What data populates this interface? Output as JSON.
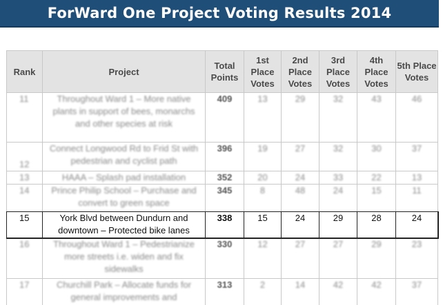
{
  "banner": {
    "title": "ForWard One Project Voting Results 2014"
  },
  "table": {
    "headers": {
      "rank": "Rank",
      "project": "Project",
      "total": "Total Points",
      "first": "1st Place Votes",
      "second": "2nd Place Votes",
      "third": "3rd Place Votes",
      "fourth": "4th Place Votes",
      "fifth": "5th Place Votes"
    },
    "rows": [
      {
        "rank": "11",
        "project": "Throughout Ward 1 – More native plants in support of bees, monarchs and other species at risk",
        "total": "409",
        "v1": "13",
        "v2": "29",
        "v3": "32",
        "v4": "43",
        "v5": "46"
      },
      {
        "rank": "12",
        "project": "Connect Longwood Rd to Frid St with pedestrian and cyclist path",
        "total": "396",
        "v1": "19",
        "v2": "27",
        "v3": "32",
        "v4": "30",
        "v5": "37"
      },
      {
        "rank": "13",
        "project": "HAAA – Splash pad installation",
        "total": "352",
        "v1": "20",
        "v2": "24",
        "v3": "33",
        "v4": "22",
        "v5": "13"
      },
      {
        "rank": "14",
        "project": "Prince Philip School – Purchase and convert to green space",
        "total": "345",
        "v1": "8",
        "v2": "48",
        "v3": "24",
        "v4": "15",
        "v5": "11"
      },
      {
        "rank": "15",
        "project": "York Blvd between Dundurn and downtown – Protected bike lanes",
        "total": "338",
        "v1": "15",
        "v2": "24",
        "v3": "29",
        "v4": "28",
        "v5": "24"
      },
      {
        "rank": "16",
        "project": "Throughout Ward 1 – Pedestrianize more streets i.e. widen and fix sidewalks",
        "total": "330",
        "v1": "12",
        "v2": "27",
        "v3": "27",
        "v4": "29",
        "v5": "23"
      },
      {
        "rank": "17",
        "project": "Churchill Park – Allocate funds for general improvements and",
        "total": "313",
        "v1": "2",
        "v2": "14",
        "v3": "42",
        "v4": "42",
        "v5": "37"
      }
    ]
  }
}
